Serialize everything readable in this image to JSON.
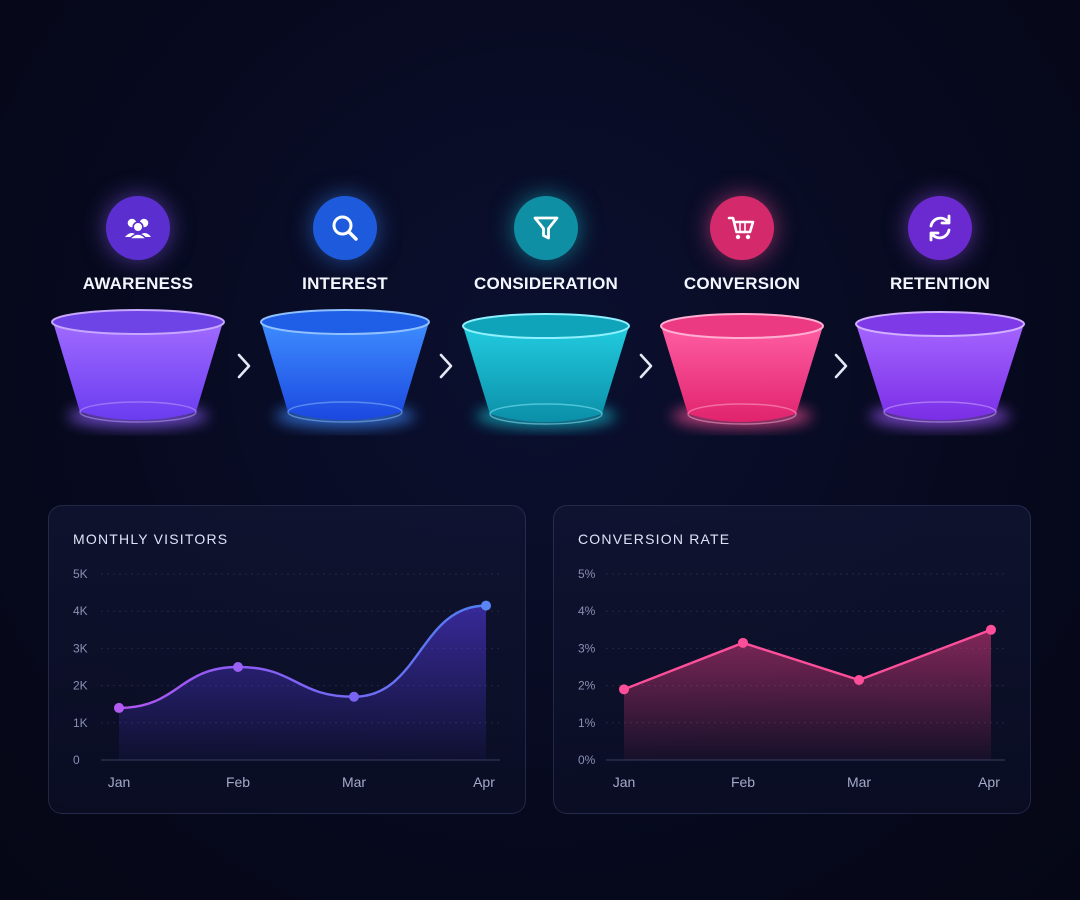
{
  "funnel": {
    "stages": [
      {
        "label": "AWARENESS",
        "icon": "people-icon",
        "color_top": "#8b5cf6",
        "color_bottom": "#6d3df0",
        "icon_bg": "#5b2fcf"
      },
      {
        "label": "INTEREST",
        "icon": "search-icon",
        "color_top": "#3b82f6",
        "color_bottom": "#1d4ee0",
        "icon_bg": "#1e5bdc"
      },
      {
        "label": "CONSIDERATION",
        "icon": "filter-icon",
        "color_top": "#18c3d6",
        "color_bottom": "#0b8fa8",
        "icon_bg": "#0f8fa3"
      },
      {
        "label": "CONVERSION",
        "icon": "cart-icon",
        "color_top": "#ff4f9a",
        "color_bottom": "#e3246f",
        "icon_bg": "#d42a6b"
      },
      {
        "label": "RETENTION",
        "icon": "refresh-icon",
        "color_top": "#9a55f5",
        "color_bottom": "#7a2ee6",
        "icon_bg": "#6a2ad0"
      }
    ]
  },
  "chart_data": [
    {
      "type": "area",
      "title": "MONTHLY VISITORS",
      "categories": [
        "Jan",
        "Feb",
        "Mar",
        "Apr"
      ],
      "values": [
        1400,
        2500,
        1700,
        4150
      ],
      "yticks": [
        "0",
        "1K",
        "2K",
        "3K",
        "4K",
        "5K"
      ],
      "ylim": [
        0,
        5000
      ],
      "grid": true,
      "colors": [
        "#b157f0",
        "#8b5cf6",
        "#6f6cf5",
        "#4f7ff0"
      ]
    },
    {
      "type": "area",
      "title": "CONVERSION RATE",
      "categories": [
        "Jan",
        "Feb",
        "Mar",
        "Apr"
      ],
      "values": [
        1.9,
        3.15,
        2.15,
        3.5
      ],
      "yticks": [
        "0%",
        "1%",
        "2%",
        "3%",
        "4%",
        "5%"
      ],
      "ylim": [
        0,
        5
      ],
      "grid": true,
      "colors": [
        "#ff4f9a"
      ]
    }
  ]
}
